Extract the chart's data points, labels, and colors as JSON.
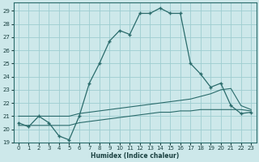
{
  "background_color": "#cde8ea",
  "grid_color": "#9ecdd0",
  "line_color": "#2a6b6b",
  "xlabel": "Humidex (Indice chaleur)",
  "xlim": [
    -0.5,
    23.5
  ],
  "ylim": [
    19.0,
    29.6
  ],
  "yticks": [
    19,
    20,
    21,
    22,
    23,
    24,
    25,
    26,
    27,
    28,
    29
  ],
  "xticks": [
    0,
    1,
    2,
    3,
    4,
    5,
    6,
    7,
    8,
    9,
    10,
    11,
    12,
    13,
    14,
    15,
    16,
    17,
    18,
    19,
    20,
    21,
    22,
    23
  ],
  "main_x": [
    0,
    1,
    2,
    3,
    4,
    5,
    6,
    7,
    8,
    9,
    10,
    11,
    12,
    13,
    14,
    15,
    16,
    17,
    18,
    19,
    20,
    21,
    22,
    23
  ],
  "main_y": [
    20.5,
    20.2,
    21.0,
    20.5,
    19.5,
    19.2,
    21.0,
    23.5,
    25.0,
    26.7,
    27.5,
    27.2,
    28.8,
    28.8,
    29.2,
    28.8,
    28.8,
    25.0,
    24.2,
    23.2,
    23.5,
    21.8,
    21.2,
    21.3
  ],
  "upper_ref_x": [
    0,
    1,
    2,
    3,
    4,
    5,
    6,
    7,
    8,
    9,
    10,
    11,
    12,
    13,
    14,
    15,
    16,
    17,
    18,
    19,
    20,
    21,
    22,
    23
  ],
  "upper_ref_y": [
    21.0,
    21.0,
    21.0,
    21.0,
    21.0,
    21.0,
    21.2,
    21.3,
    21.4,
    21.5,
    21.6,
    21.7,
    21.8,
    21.9,
    22.0,
    22.1,
    22.2,
    22.3,
    22.5,
    22.7,
    23.0,
    23.1,
    21.8,
    21.5
  ],
  "lower_ref_x": [
    0,
    1,
    2,
    3,
    4,
    5,
    6,
    7,
    8,
    9,
    10,
    11,
    12,
    13,
    14,
    15,
    16,
    17,
    18,
    19,
    20,
    21,
    22,
    23
  ],
  "lower_ref_y": [
    20.3,
    20.3,
    20.3,
    20.3,
    20.3,
    20.3,
    20.5,
    20.6,
    20.7,
    20.8,
    20.9,
    21.0,
    21.1,
    21.2,
    21.3,
    21.3,
    21.4,
    21.4,
    21.5,
    21.5,
    21.5,
    21.5,
    21.5,
    21.4
  ]
}
